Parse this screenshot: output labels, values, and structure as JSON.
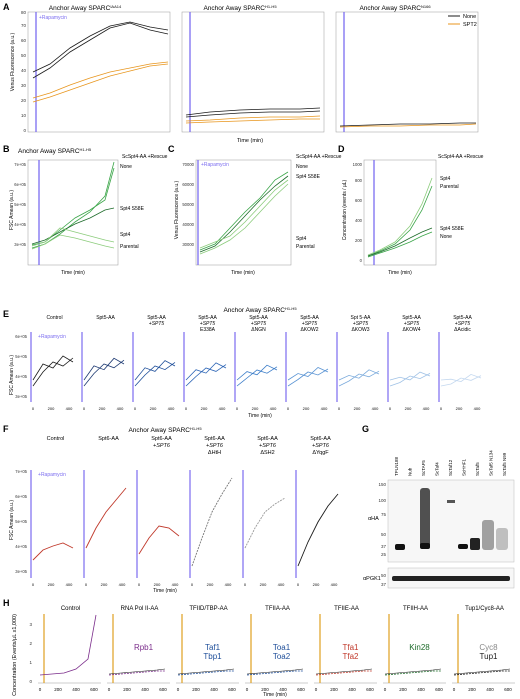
{
  "panelA": {
    "letter": "A",
    "titles": [
      "Anchor Away SPARC",
      "Anchor Away SPARC",
      "Anchor Away SPARC"
    ],
    "title_sups": [
      "IAA14",
      "H1-H5",
      "N166"
    ],
    "ylabel": "Venus Fluorescence (a.u.)",
    "xlabel": "Time (min)",
    "annotation": "+Rapamycin",
    "legend": [
      "None",
      "SPT2"
    ],
    "yticks": [
      "0",
      "10",
      "20",
      "30",
      "40",
      "50",
      "60",
      "70",
      "80"
    ]
  },
  "panelB": {
    "letter": "B",
    "title": "Anchor Away SPARC",
    "title_sup": "H1-H5",
    "subtitle": "ScSpt4-AA +Rescue",
    "ylabel": "FSC Amean (a.u.)",
    "xlabel": "Time (min)",
    "labels": [
      "None",
      "Spt4 S58E",
      "Spt4",
      "Parental"
    ],
    "yticks": [
      "3e+05",
      "4e+05",
      "5e+05",
      "6e+05",
      "7e+05"
    ]
  },
  "panelC": {
    "letter": "C",
    "subtitle": "ScSpt4-AA +Rescue",
    "annotation": "+Rapamycin",
    "ylabel": "Venus Fluorescence (a.u.)",
    "xlabel": "Time (min)",
    "labels": [
      "None",
      "Spt4 S58E",
      "Spt4",
      "Parental"
    ],
    "yticks": [
      "30000",
      "40000",
      "50000",
      "60000",
      "70000"
    ]
  },
  "panelD": {
    "letter": "D",
    "subtitle": "ScSpt4-AA +Rescue",
    "ylabel": "Concentration (events / µL)",
    "xlabel": "Time (min)",
    "labels": [
      "Spt4",
      "Parental",
      "Spt4 S58E",
      "None"
    ],
    "yticks": [
      "0",
      "200",
      "400",
      "600",
      "800",
      "1000"
    ]
  },
  "panelE": {
    "letter": "E",
    "title": "Anchor Away SPARC",
    "title_sup": "H1-H5",
    "annotation": "+Rapamycin",
    "ylabel": "FSC Amean (a.u.)",
    "xlabel": "Time (min)",
    "subpanels": [
      [
        "Control"
      ],
      [
        "Spt5-AA"
      ],
      [
        "Spt5-AA",
        "+SPT5"
      ],
      [
        "Spt5-AA",
        "+SPT5",
        "E338A"
      ],
      [
        "Spt5-AA",
        "+SPT5",
        "ΔNGN"
      ],
      [
        "Spt5-AA",
        "+SPT5",
        "ΔKOW2"
      ],
      [
        "Spt  5-AA",
        "+SPT5",
        "ΔKOW3"
      ],
      [
        "Spt5-AA",
        "+SPT5",
        "ΔKOW4"
      ],
      [
        "Spt5-AA",
        "+SPT5",
        "ΔAcidic"
      ]
    ],
    "yticks": [
      "3e+05",
      "4e+05",
      "5e+05",
      "6e+05"
    ]
  },
  "panelF": {
    "letter": "F",
    "title": "Anchor Away SPARC",
    "title_sup": "H1-H5",
    "annotation": "+Rapamycin",
    "ylabel": "FSC Amean (a.u.)",
    "xlabel": "Time (min)",
    "subpanels": [
      [
        "Control"
      ],
      [
        "Spt6-AA"
      ],
      [
        "Spt6-AA",
        "+SPT6"
      ],
      [
        "Spt6-AA",
        "+SPT6",
        "ΔHtH"
      ],
      [
        "Spt6-AA",
        "+SPT6",
        "ΔSH2"
      ],
      [
        "Spt6-AA",
        "+SPT6",
        "ΔYqgF"
      ]
    ],
    "yticks": [
      "3e+05",
      "4e+05",
      "5e+05",
      "6e+05",
      "7e+05"
    ]
  },
  "panelG": {
    "letter": "G",
    "lanes": [
      "TPLN188",
      "Nub",
      "ScTAF5",
      "ScTaf4",
      "ScTaf12",
      "ScHHF1",
      "ScTaf5",
      "ScTaf5 N134",
      "ScTaf5 N99"
    ],
    "ladder_top": [
      "150",
      "100",
      "75",
      "50",
      "37",
      "25"
    ],
    "ladder_bottom": [
      "50",
      "37"
    ],
    "blot_labels": [
      "αHA",
      "αPGK1"
    ]
  },
  "panelH": {
    "letter": "H",
    "ylabel": "Concentration (Events/µL x1,000)",
    "xlabel": "Time (min)",
    "subpanels": [
      "Control",
      "RNA Pol II-AA",
      "TFIID/TBP-AA",
      "TFIIA-AA",
      "TFIIE-AA",
      "TFIIH-AA",
      "Tup1/Cyc8-AA"
    ],
    "proteins": [
      [],
      [
        "Rpb1"
      ],
      [
        "Taf1",
        "Tbp1"
      ],
      [
        "Toa1",
        "Toa2"
      ],
      [
        "Tfa1",
        "Tfa2"
      ],
      [
        "Kin28"
      ],
      [
        "Cyc8",
        "Tup1"
      ]
    ],
    "yticks": [
      "0",
      "1",
      "2",
      "3"
    ],
    "xticks": [
      "0",
      "200",
      "400",
      "600"
    ]
  },
  "colors": {
    "rapamycin": "#7b6cf0",
    "black": "#1a1a1a",
    "orange": "#e8961e",
    "green_dark": "#1d6b2a",
    "green_mid": "#3aa548",
    "green_light": "#8ccc7c",
    "red": "#c0392b"
  }
}
